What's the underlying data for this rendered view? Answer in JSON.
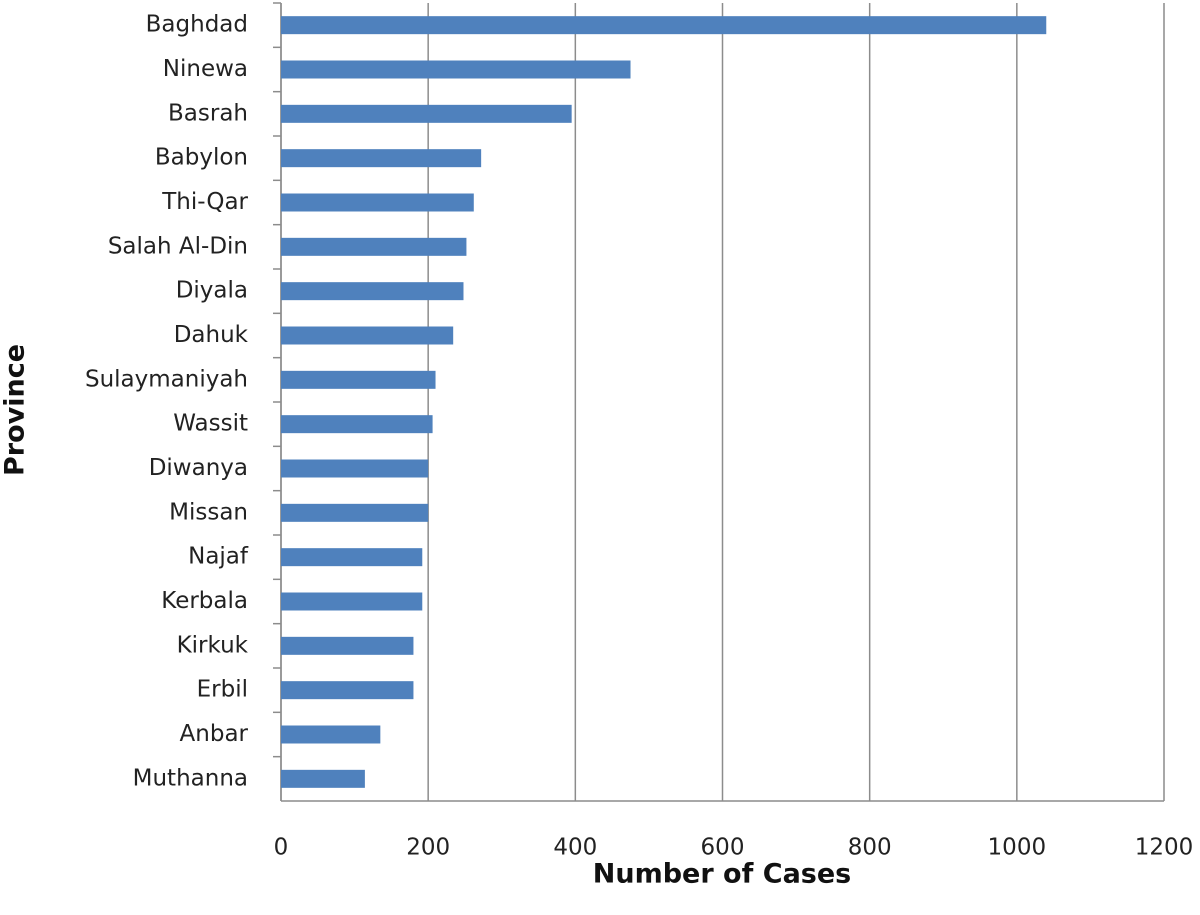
{
  "chart_data": {
    "type": "bar",
    "orientation": "horizontal",
    "categories": [
      "Baghdad",
      "Ninewa",
      "Basrah",
      "Babylon",
      "Thi-Qar",
      "Salah Al-Din",
      "Diyala",
      "Dahuk",
      "Sulaymaniyah",
      "Wassit",
      "Diwanya",
      "Missan",
      "Najaf",
      "Kerbala",
      "Kirkuk",
      "Erbil",
      "Anbar",
      "Muthanna"
    ],
    "values": [
      1040,
      475,
      395,
      272,
      262,
      252,
      248,
      234,
      210,
      206,
      200,
      200,
      192,
      192,
      180,
      180,
      135,
      114
    ],
    "color": "#4f81bd",
    "xlabel": "Number of Cases",
    "ylabel": "Province",
    "xlim": [
      0,
      1200
    ],
    "xticks": [
      0,
      200,
      400,
      600,
      800,
      1000,
      1200
    ],
    "grid": true
  }
}
